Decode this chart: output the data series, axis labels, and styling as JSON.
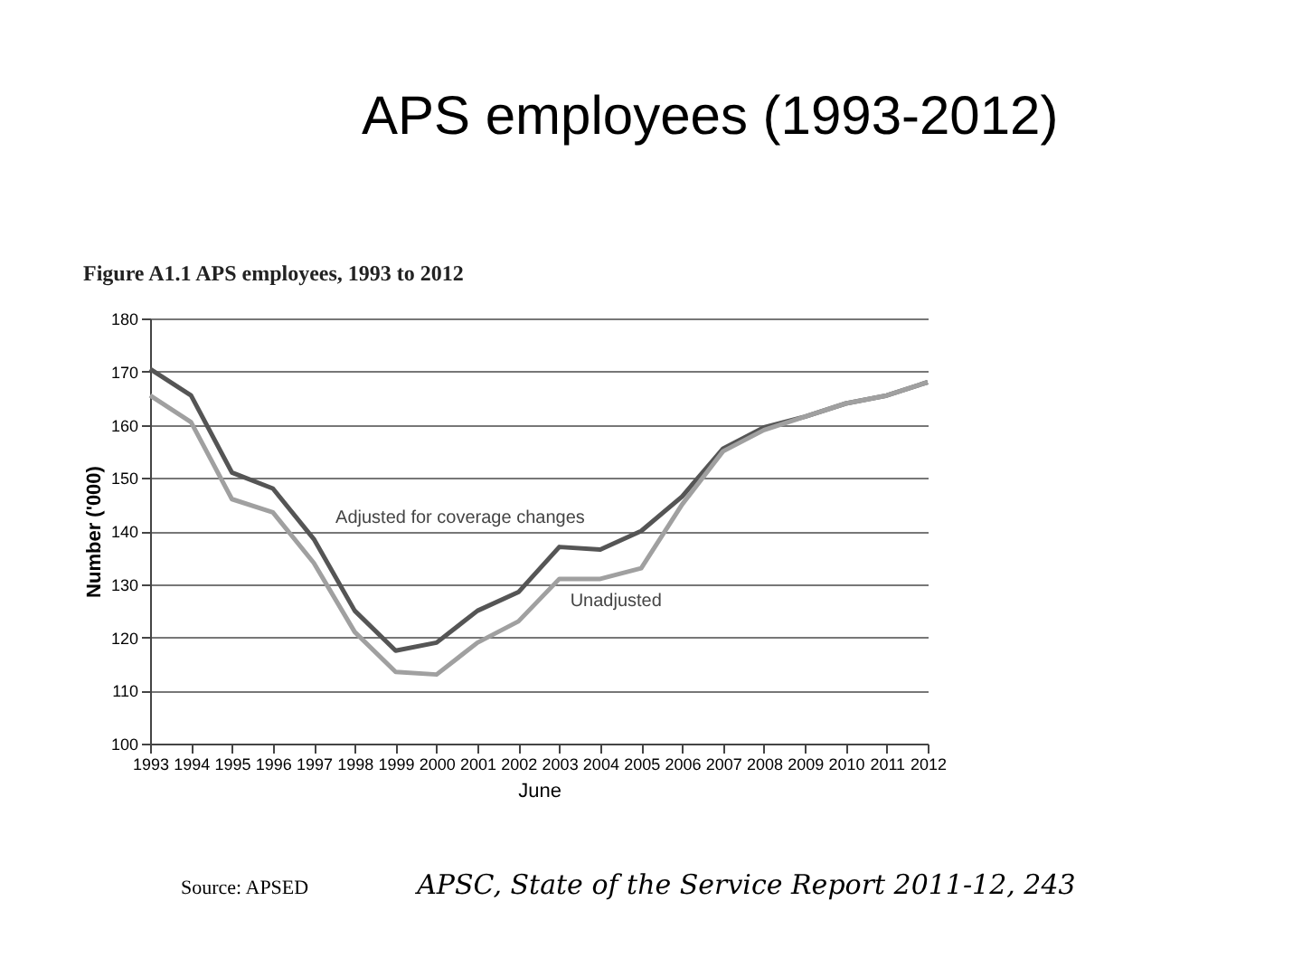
{
  "chart_data": {
    "type": "line",
    "title": "APS employees (1993-2012)",
    "subtitle": "Figure A1.1 APS employees, 1993 to 2012",
    "xlabel": "June",
    "ylabel": "Number ('000)",
    "categories": [
      "1993",
      "1994",
      "1995",
      "1996",
      "1997",
      "1998",
      "1999",
      "2000",
      "2001",
      "2002",
      "2003",
      "2004",
      "2005",
      "2006",
      "2007",
      "2008",
      "2009",
      "2010",
      "2011",
      "2012"
    ],
    "series": [
      {
        "name": "Adjusted for coverage changes",
        "color": "#555555",
        "values": [
          170.5,
          165.5,
          151,
          148,
          138.5,
          125,
          117.5,
          119,
          125,
          128.5,
          137,
          136.5,
          140,
          146.5,
          155.5,
          159.5,
          161.5,
          164,
          165.5,
          168
        ]
      },
      {
        "name": "Unadjusted",
        "color": "#a0a0a0",
        "values": [
          165.5,
          160.5,
          146,
          143.5,
          134,
          121,
          113.5,
          113,
          119,
          123,
          131,
          131,
          133,
          145,
          155,
          159,
          161.5,
          164,
          165.5,
          168
        ]
      }
    ],
    "ylim": [
      100,
      180
    ],
    "yticks": [
      100,
      110,
      120,
      130,
      140,
      150,
      160,
      170,
      180
    ],
    "grid": "y",
    "marker": "none",
    "line_style": "solid",
    "annotations": [
      "Source: APSED",
      "APSC, State of the Service Report 2011-12, 243"
    ]
  }
}
